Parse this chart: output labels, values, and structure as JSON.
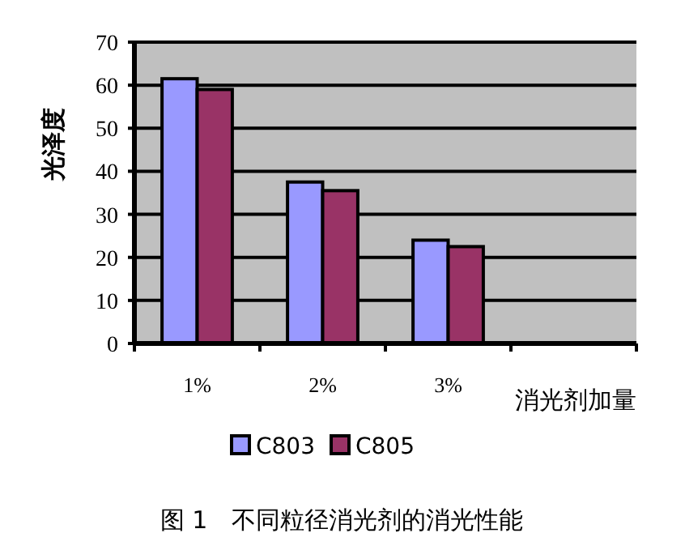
{
  "chart_data": {
    "type": "bar",
    "title": "图 1　不同粒径消光剂的消光性能",
    "xlabel": "消光剂加量",
    "ylabel": "光泽度",
    "categories": [
      "1%",
      "2%",
      "3%",
      null
    ],
    "series": [
      {
        "name": "C803",
        "color": "#9999ff",
        "values": [
          61.5,
          37.5,
          24,
          null
        ]
      },
      {
        "name": "C805",
        "color": "#993366",
        "values": [
          59,
          35.5,
          22.5,
          null
        ]
      }
    ],
    "ylim": [
      0,
      70
    ],
    "yticks": [
      0,
      10,
      20,
      30,
      40,
      50,
      60,
      70
    ],
    "grid": "y",
    "legend": "bottom"
  }
}
